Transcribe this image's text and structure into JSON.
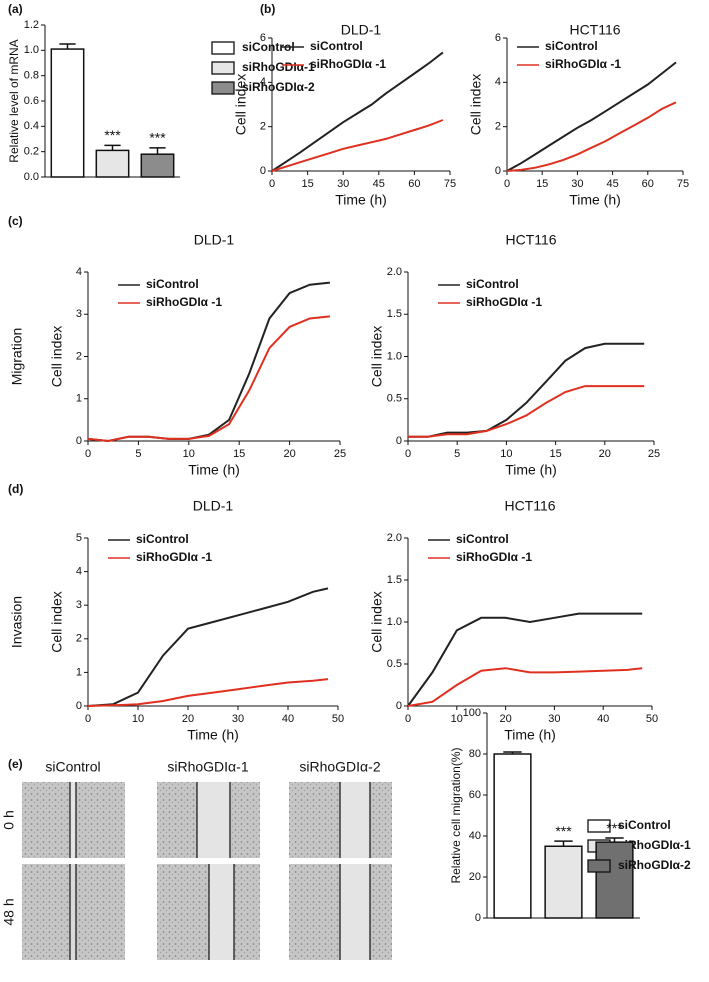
{
  "chart_data": [
    {
      "type": "bar",
      "panel": "(a)",
      "ylabel": "Relative level of mRNA",
      "categories": [
        "siControl",
        "siRhoGDIα-1",
        "siRhoGDIα-2"
      ],
      "values": [
        1.01,
        0.21,
        0.18
      ],
      "errors": [
        0.04,
        0.04,
        0.05
      ],
      "colors": [
        "#ffffff",
        "#e6e6e6",
        "#8c8c8c"
      ],
      "annotations": [
        null,
        "***",
        "***"
      ],
      "ylim": [
        0,
        1.2
      ],
      "yticks": [
        {
          "value": 0,
          "label": "0.0"
        },
        0.2,
        0.4,
        0.6,
        0.8,
        {
          "value": 1,
          "label": "1.0"
        },
        1.2
      ]
    },
    {
      "type": "line",
      "panel": "(b)",
      "title": "DLD-1",
      "xlabel": "Time (h)",
      "ylabel": "Cell index",
      "x": [
        0,
        6,
        12,
        18,
        24,
        30,
        36,
        42,
        48,
        54,
        60,
        66,
        72
      ],
      "series": [
        {
          "name": "siControl",
          "color": "#222222",
          "values": [
            0,
            0.42,
            0.85,
            1.3,
            1.75,
            2.2,
            2.6,
            3.0,
            3.5,
            3.95,
            4.4,
            4.85,
            5.35
          ]
        },
        {
          "name": "siRhoGDIα -1",
          "color": "#e03020",
          "values": [
            0,
            0.2,
            0.4,
            0.6,
            0.8,
            1.0,
            1.15,
            1.3,
            1.45,
            1.65,
            1.85,
            2.05,
            2.3
          ]
        }
      ],
      "xlim": [
        0,
        75
      ],
      "xticks": [
        0,
        15,
        30,
        45,
        60,
        75
      ],
      "ylim": [
        0,
        6
      ],
      "yticks": [
        0,
        2,
        4,
        6
      ]
    },
    {
      "type": "line",
      "title": "HCT116",
      "xlabel": "Time (h)",
      "ylabel": "Cell index",
      "x": [
        0,
        6,
        12,
        18,
        24,
        30,
        36,
        42,
        48,
        54,
        60,
        66,
        72
      ],
      "series": [
        {
          "name": "siControl",
          "color": "#222222",
          "values": [
            0,
            0.35,
            0.75,
            1.15,
            1.55,
            1.95,
            2.3,
            2.7,
            3.1,
            3.5,
            3.9,
            4.4,
            4.9
          ]
        },
        {
          "name": "siRhoGDIα -1",
          "color": "#e03020",
          "values": [
            0,
            0.05,
            0.15,
            0.3,
            0.5,
            0.75,
            1.05,
            1.35,
            1.7,
            2.05,
            2.4,
            2.8,
            3.1
          ]
        }
      ],
      "xlim": [
        0,
        75
      ],
      "xticks": [
        0,
        15,
        30,
        45,
        60,
        75
      ],
      "ylim": [
        0,
        6
      ],
      "yticks": [
        0,
        2,
        4,
        6
      ]
    },
    {
      "type": "line",
      "panel": "(c)",
      "row_label": "Migration",
      "title": "DLD-1",
      "xlabel": "Time (h)",
      "ylabel": "Cell index",
      "x": [
        0,
        2,
        4,
        6,
        8,
        10,
        12,
        14,
        16,
        18,
        20,
        22,
        24
      ],
      "series": [
        {
          "name": "siControl",
          "color": "#222222",
          "values": [
            0.05,
            0,
            0.1,
            0.1,
            0.05,
            0.05,
            0.15,
            0.5,
            1.6,
            2.9,
            3.5,
            3.7,
            3.75
          ]
        },
        {
          "name": "siRhoGDIα -1",
          "color": "#e03020",
          "values": [
            0.05,
            0,
            0.1,
            0.1,
            0.05,
            0.05,
            0.12,
            0.4,
            1.2,
            2.2,
            2.7,
            2.9,
            2.95
          ]
        }
      ],
      "xlim": [
        0,
        25
      ],
      "xticks": [
        0,
        5,
        10,
        15,
        20,
        25
      ],
      "ylim": [
        0,
        4
      ],
      "yticks": [
        0,
        1,
        2,
        3,
        4
      ]
    },
    {
      "type": "line",
      "title": "HCT116",
      "xlabel": "Time (h)",
      "ylabel": "Cell index",
      "x": [
        0,
        2,
        4,
        6,
        8,
        10,
        12,
        14,
        16,
        18,
        20,
        22,
        24
      ],
      "series": [
        {
          "name": "siControl",
          "color": "#222222",
          "values": [
            0.05,
            0.05,
            0.1,
            0.1,
            0.12,
            0.25,
            0.45,
            0.7,
            0.95,
            1.1,
            1.15,
            1.15,
            1.15
          ]
        },
        {
          "name": "siRhoGDIα -1",
          "color": "#e03020",
          "values": [
            0.05,
            0.05,
            0.08,
            0.08,
            0.12,
            0.2,
            0.3,
            0.45,
            0.58,
            0.65,
            0.65,
            0.65,
            0.65
          ]
        }
      ],
      "xlim": [
        0,
        25
      ],
      "xticks": [
        0,
        5,
        10,
        15,
        20,
        25
      ],
      "ylim": [
        0,
        2
      ],
      "yticks": [
        0,
        0.5,
        {
          "value": 1,
          "label": "1.0"
        },
        1.5,
        {
          "value": 2,
          "label": "2.0"
        }
      ]
    },
    {
      "type": "line",
      "panel": "(d)",
      "row_label": "Invasion",
      "title": "DLD-1",
      "xlabel": "Time (h)",
      "ylabel": "Cell index",
      "x": [
        0,
        5,
        10,
        15,
        20,
        25,
        30,
        35,
        40,
        45,
        48
      ],
      "series": [
        {
          "name": "siControl",
          "color": "#222222",
          "values": [
            0,
            0.05,
            0.4,
            1.5,
            2.3,
            2.5,
            2.7,
            2.9,
            3.1,
            3.4,
            3.5
          ]
        },
        {
          "name": "siRhoGDIα -1",
          "color": "#e03020",
          "values": [
            0,
            0.02,
            0.05,
            0.15,
            0.3,
            0.4,
            0.5,
            0.6,
            0.7,
            0.75,
            0.8
          ]
        }
      ],
      "xlim": [
        0,
        50
      ],
      "xticks": [
        0,
        10,
        20,
        30,
        40,
        50
      ],
      "ylim": [
        0,
        5
      ],
      "yticks": [
        0,
        1,
        2,
        3,
        4,
        5
      ]
    },
    {
      "type": "line",
      "title": "HCT116",
      "xlabel": "Time (h)",
      "ylabel": "Cell index",
      "x": [
        0,
        5,
        10,
        15,
        20,
        25,
        30,
        35,
        40,
        45,
        48
      ],
      "series": [
        {
          "name": "siControl",
          "color": "#222222",
          "values": [
            0,
            0.4,
            0.9,
            1.05,
            1.05,
            1.0,
            1.05,
            1.1,
            1.1,
            1.1,
            1.1
          ]
        },
        {
          "name": "siRhoGDIα -1",
          "color": "#e03020",
          "values": [
            0,
            0.05,
            0.25,
            0.42,
            0.45,
            0.4,
            0.4,
            0.41,
            0.42,
            0.43,
            0.45
          ]
        }
      ],
      "xlim": [
        0,
        50
      ],
      "xticks": [
        0,
        10,
        20,
        30,
        40,
        50
      ],
      "ylim": [
        0,
        2
      ],
      "yticks": [
        0,
        0.5,
        {
          "value": 1,
          "label": "1.0"
        },
        1.5,
        {
          "value": 2,
          "label": "2.0"
        }
      ]
    },
    {
      "type": "bar",
      "panel": "(e)",
      "ylabel": "Relative cell migration(%)",
      "categories": [
        "siControl",
        "siRhoGDIα-1",
        "siRhoGDIα-2"
      ],
      "values": [
        80,
        35,
        37
      ],
      "errors": [
        1,
        2.5,
        2
      ],
      "colors": [
        "#ffffff",
        "#e6e6e6",
        "#707070"
      ],
      "annotations": [
        null,
        "***",
        "***"
      ],
      "ylim": [
        0,
        100
      ],
      "yticks": [
        0,
        20,
        40,
        60,
        80,
        100
      ]
    }
  ],
  "images": {
    "columns": [
      "siControl",
      "siRhoGDIα-1",
      "siRhoGDIα-2"
    ],
    "rows": [
      "0 h",
      "48 h"
    ]
  }
}
